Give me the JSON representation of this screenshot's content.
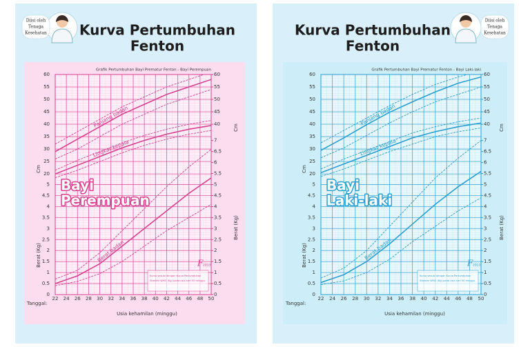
{
  "headers": [
    {
      "note": [
        "Diisi oleh",
        "Tenaga",
        "Kesehatan"
      ],
      "title": [
        "Kurva Pertumbuhan",
        "Fenton"
      ]
    },
    {
      "note": [
        "Diisi oleh",
        "Tenaga",
        "Kesehatan"
      ],
      "title": [
        "Kurva Pertumbuhan",
        "Fenton"
      ]
    }
  ],
  "chart_data": [
    {
      "type": "line",
      "title": "Grafik Pertumbuhan Bayi Prematur Fenton - Bayi Perempuan",
      "overlay": [
        "Bayi",
        "Perempuan"
      ],
      "color": "#d6408f",
      "background": "#fcdcef",
      "x_label": "Usia kehamilan (minggu)",
      "date_label": "Tanggal:",
      "y_label": "Cm",
      "y2_label": "Berat (Kg)",
      "annotations": [
        "Panjang badan",
        "Lingkar kepala",
        "Berat badan"
      ],
      "note": [
        "Kurva sesuai dengan Kurva Pertumbuhan",
        "Standar WHO (Kg) pada usia hari 50 minggu."
      ],
      "logo": [
        "F",
        "2013"
      ],
      "xlim": [
        22,
        50
      ],
      "xticks": [
        22,
        24,
        26,
        28,
        30,
        32,
        34,
        36,
        38,
        40,
        42,
        44,
        46,
        48,
        50
      ],
      "ylim": [
        -28.5,
        60
      ],
      "yticks": [
        20,
        25,
        30,
        35,
        40,
        45,
        50,
        55,
        60
      ],
      "y2lim": [
        0,
        10
      ],
      "y2ticks": [
        0,
        0.5,
        1,
        1.5,
        2,
        2.5,
        3,
        3.5,
        4,
        4.5,
        5
      ],
      "right_yticks": [
        40,
        45,
        50,
        55,
        60
      ],
      "right_y2ticks": [
        0,
        0.5,
        1,
        1.5,
        2,
        2.5,
        3,
        3.5,
        4,
        4.5,
        5,
        5.5,
        6,
        6.5,
        7
      ],
      "x": [
        22,
        26,
        30,
        34,
        38,
        42,
        46,
        50
      ],
      "series": [
        {
          "axis": "y",
          "values": [
            26,
            30,
            35,
            40,
            44,
            48,
            51,
            54
          ]
        },
        {
          "axis": "y",
          "values": [
            29,
            34,
            39,
            44,
            48,
            52,
            55,
            58
          ]
        },
        {
          "axis": "y",
          "values": [
            32,
            37,
            42,
            47,
            51,
            55,
            58,
            61
          ]
        },
        {
          "axis": "y",
          "values": [
            18.5,
            21.5,
            25,
            28.5,
            31.5,
            34,
            36,
            37.5
          ]
        },
        {
          "axis": "y",
          "values": [
            20,
            23.5,
            27,
            30.5,
            33.5,
            36,
            38,
            39.5
          ]
        },
        {
          "axis": "y",
          "values": [
            21.5,
            25.5,
            29,
            32.5,
            35.5,
            38,
            40,
            41.5
          ]
        },
        {
          "axis": "y2",
          "values": [
            0.4,
            0.6,
            0.95,
            1.5,
            2.2,
            2.9,
            3.5,
            4.1
          ]
        },
        {
          "axis": "y2",
          "values": [
            0.5,
            0.85,
            1.4,
            2.2,
            3.0,
            3.8,
            4.6,
            5.3
          ]
        },
        {
          "axis": "y2",
          "values": [
            0.7,
            1.1,
            1.9,
            2.9,
            3.9,
            4.9,
            5.8,
            6.6
          ]
        }
      ]
    },
    {
      "type": "line",
      "title": "Grafik Pertumbuhan Bayi Prematur Fenton - Bayi Laki-laki",
      "overlay": [
        "Bayi",
        "Laki-laki"
      ],
      "color": "#2b9fcf",
      "background": "#cdeef9",
      "x_label": "Usia kehamilan (minggu)",
      "date_label": "Tanggal:",
      "y_label": "Cm",
      "y2_label": "Berat (Kg)",
      "annotations": [
        "Panjang badan",
        "Lingkar kepala",
        "Berat badan"
      ],
      "note": [
        "Kurva sesuai dengan Kurva Pertumbuhan",
        "Standar WHO (Kg) pada usia hari 50 minggu."
      ],
      "logo": [
        "F",
        "2013"
      ],
      "xlim": [
        22,
        50
      ],
      "xticks": [
        22,
        24,
        26,
        28,
        30,
        32,
        34,
        36,
        38,
        40,
        42,
        44,
        46,
        48,
        50
      ],
      "ylim": [
        -28.5,
        60
      ],
      "yticks": [
        20,
        25,
        30,
        35,
        40,
        45,
        50,
        55,
        60
      ],
      "y2lim": [
        0,
        10
      ],
      "y2ticks": [
        0,
        0.5,
        1,
        1.5,
        2,
        2.5,
        3,
        3.5,
        4,
        4.5,
        5
      ],
      "right_yticks": [
        40,
        45,
        50,
        55,
        60
      ],
      "right_y2ticks": [
        0,
        0.5,
        1,
        1.5,
        2,
        2.5,
        3,
        3.5,
        4,
        4.5,
        5,
        5.5,
        6,
        6.5,
        7
      ],
      "x": [
        22,
        26,
        30,
        34,
        38,
        42,
        46,
        50
      ],
      "series": [
        {
          "axis": "y",
          "values": [
            26.5,
            30.5,
            35.5,
            40.5,
            45,
            49,
            52,
            55
          ]
        },
        {
          "axis": "y",
          "values": [
            29.5,
            34.5,
            39.8,
            44.8,
            49,
            53,
            56.5,
            59
          ]
        },
        {
          "axis": "y",
          "values": [
            32.5,
            37.5,
            42.5,
            47.5,
            52,
            56,
            59,
            61.5
          ]
        },
        {
          "axis": "y",
          "values": [
            19,
            22,
            25.5,
            29,
            32,
            35,
            37,
            38.5
          ]
        },
        {
          "axis": "y",
          "values": [
            20.5,
            24,
            27.5,
            31,
            34.5,
            37,
            39,
            40.5
          ]
        },
        {
          "axis": "y",
          "values": [
            22,
            26,
            29.5,
            33,
            36.5,
            39,
            41,
            42.5
          ]
        },
        {
          "axis": "y2",
          "values": [
            0.45,
            0.62,
            1.0,
            1.6,
            2.4,
            3.1,
            3.8,
            4.4
          ]
        },
        {
          "axis": "y2",
          "values": [
            0.55,
            0.9,
            1.5,
            2.3,
            3.2,
            4.1,
            4.9,
            5.6
          ]
        },
        {
          "axis": "y2",
          "values": [
            0.75,
            1.2,
            2.0,
            3.1,
            4.2,
            5.3,
            6.2,
            7.0
          ]
        }
      ]
    }
  ]
}
